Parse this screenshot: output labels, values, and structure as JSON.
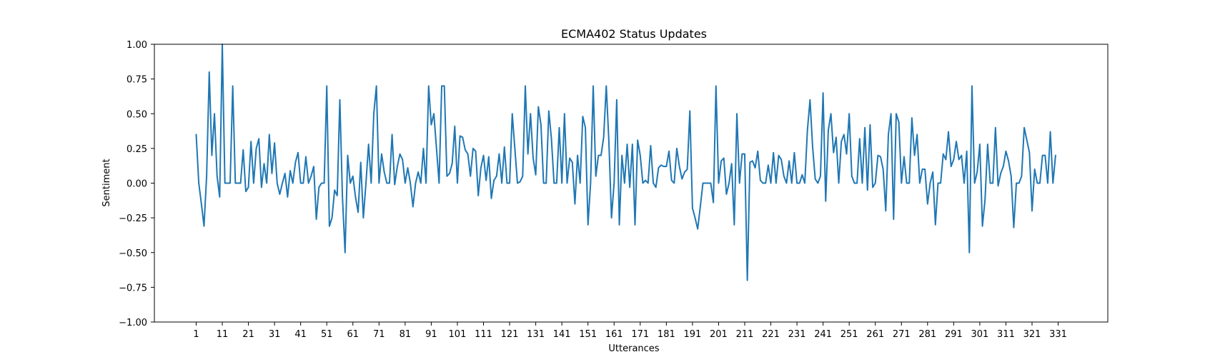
{
  "chart_data": {
    "type": "line",
    "title": "ECMA402 Status Updates",
    "xlabel": "Utterances",
    "ylabel": "Sentiment",
    "ylim": [
      -1.0,
      1.0
    ],
    "xlim": [
      -15,
      350
    ],
    "yticks": [
      -1.0,
      -0.75,
      -0.5,
      -0.25,
      0.0,
      0.25,
      0.5,
      0.75,
      1.0
    ],
    "ytick_labels": [
      "−1.00",
      "−0.75",
      "−0.50",
      "−0.25",
      "0.00",
      "0.25",
      "0.50",
      "0.75",
      "1.00"
    ],
    "xticks": [
      1,
      11,
      21,
      31,
      41,
      51,
      61,
      71,
      81,
      91,
      101,
      111,
      121,
      131,
      141,
      151,
      161,
      171,
      181,
      191,
      201,
      211,
      221,
      231,
      241,
      251,
      261,
      271,
      281,
      291,
      301,
      311,
      321,
      331
    ],
    "xtick_labels": [
      "1",
      "11",
      "21",
      "31",
      "41",
      "51",
      "61",
      "71",
      "81",
      "91",
      "101",
      "111",
      "121",
      "131",
      "141",
      "151",
      "161",
      "171",
      "181",
      "191",
      "201",
      "211",
      "221",
      "231",
      "241",
      "251",
      "261",
      "271",
      "281",
      "291",
      "301",
      "311",
      "321",
      "331"
    ],
    "grid": false,
    "line_color": "#1f77b4",
    "series": [
      {
        "x_start": 1,
        "values": [
          0.35,
          0.0,
          -0.15,
          -0.31,
          0.05,
          0.8,
          0.2,
          0.5,
          0.05,
          -0.1,
          1.0,
          0.0,
          0.0,
          0.0,
          0.7,
          0.0,
          0.0,
          0.0,
          0.24,
          -0.06,
          -0.03,
          0.3,
          0.0,
          0.25,
          0.32,
          -0.03,
          0.14,
          0.0,
          0.35,
          0.07,
          0.29,
          0.0,
          -0.08,
          0.0,
          0.07,
          -0.1,
          0.09,
          0.0,
          0.15,
          0.22,
          0.0,
          0.0,
          0.19,
          0.0,
          0.05,
          0.12,
          -0.26,
          -0.03,
          0.0,
          0.0,
          0.7,
          -0.31,
          -0.25,
          -0.05,
          -0.09,
          0.6,
          -0.1,
          -0.5,
          0.2,
          0.0,
          0.05,
          -0.1,
          -0.21,
          0.15,
          -0.25,
          0.0,
          0.28,
          0.0,
          0.5,
          0.7,
          0.0,
          0.21,
          0.08,
          0.0,
          0.0,
          0.35,
          -0.01,
          0.12,
          0.21,
          0.17,
          0.0,
          0.11,
          0.0,
          -0.17,
          0.0,
          0.08,
          0.0,
          0.25,
          0.0,
          0.7,
          0.42,
          0.5,
          0.25,
          0.0,
          0.7,
          0.7,
          0.05,
          0.07,
          0.14,
          0.41,
          0.0,
          0.34,
          0.33,
          0.24,
          0.21,
          0.05,
          0.25,
          0.23,
          -0.09,
          0.11,
          0.2,
          0.02,
          0.19,
          -0.11,
          0.02,
          0.05,
          0.21,
          0.0,
          0.26,
          0.0,
          0.0,
          0.5,
          0.25,
          0.0,
          0.01,
          0.05,
          0.7,
          0.21,
          0.5,
          0.18,
          0.06,
          0.55,
          0.42,
          0.0,
          0.0,
          0.52,
          0.32,
          0.0,
          0.0,
          0.4,
          0.0,
          0.5,
          0.0,
          0.18,
          0.15,
          -0.15,
          0.2,
          0.0,
          0.48,
          0.4,
          -0.3,
          0.0,
          0.7,
          0.05,
          0.2,
          0.2,
          0.33,
          0.7,
          0.3,
          -0.25,
          0.0,
          0.6,
          -0.3,
          0.2,
          0.0,
          0.28,
          -0.03,
          0.28,
          -0.3,
          0.31,
          0.2,
          0.0,
          0.02,
          0.0,
          0.27,
          0.0,
          -0.03,
          0.11,
          0.13,
          0.12,
          0.12,
          0.23,
          0.02,
          0.0,
          0.25,
          0.12,
          0.03,
          0.08,
          0.1,
          0.52,
          -0.18,
          -0.25,
          -0.33,
          -0.17,
          0.0,
          0.0,
          0.0,
          0.0,
          -0.14,
          0.7,
          0.0,
          0.16,
          0.18,
          -0.08,
          0.0,
          0.14,
          -0.3,
          0.5,
          0.0,
          0.21,
          0.21,
          -0.7,
          0.15,
          0.16,
          0.11,
          0.23,
          0.02,
          0.0,
          0.0,
          0.13,
          0.0,
          0.22,
          0.0,
          0.2,
          0.17,
          0.05,
          0.0,
          0.16,
          0.0,
          0.22,
          0.0,
          0.0,
          0.06,
          0.0,
          0.38,
          0.6,
          0.26,
          0.03,
          0.0,
          0.05,
          0.65,
          -0.13,
          0.38,
          0.5,
          0.22,
          0.33,
          0.0,
          0.3,
          0.35,
          0.21,
          0.5,
          0.05,
          0.0,
          0.0,
          0.32,
          0.0,
          0.4,
          -0.05,
          0.42,
          -0.03,
          0.0,
          0.2,
          0.19,
          0.1,
          -0.2,
          0.35,
          0.5,
          -0.26,
          0.5,
          0.44,
          0.0,
          0.19,
          0.0,
          0.0,
          0.47,
          0.2,
          0.35,
          0.0,
          0.1,
          0.1,
          -0.15,
          0.0,
          0.08,
          -0.3,
          0.0,
          0.0,
          0.21,
          0.17,
          0.37,
          0.12,
          0.17,
          0.3,
          0.17,
          0.2,
          0.0,
          0.23,
          -0.5,
          0.7,
          0.0,
          0.08,
          0.28,
          -0.31,
          -0.12,
          0.28,
          0.0,
          0.0,
          0.4,
          -0.02,
          0.07,
          0.12,
          0.23,
          0.16,
          0.05,
          -0.32,
          0.0,
          0.0,
          0.05,
          0.4,
          0.31,
          0.22,
          -0.2,
          0.1,
          0.0,
          0.0,
          0.2,
          0.2,
          0.0,
          0.37,
          0.0,
          0.2
        ]
      }
    ]
  }
}
